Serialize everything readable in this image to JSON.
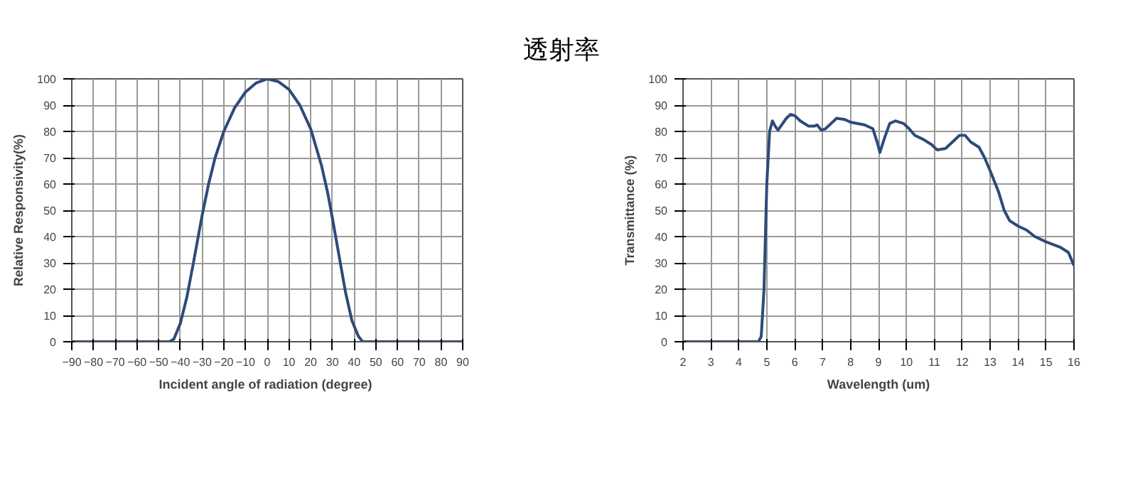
{
  "chart_data": [
    {
      "type": "line",
      "xlabel": "Incident angle of radiation  (degree)",
      "ylabel": "Relative Responsivity(%)",
      "grid": true,
      "marker": "none",
      "line_style": "solid",
      "xlim": [
        -90,
        90
      ],
      "xticks": [
        -90,
        -80,
        -70,
        -60,
        -50,
        -40,
        -30,
        -20,
        -10,
        0,
        10,
        20,
        30,
        40,
        50,
        60,
        70,
        80,
        90
      ],
      "ylim": [
        0,
        100
      ],
      "yticks": [
        0,
        10,
        20,
        30,
        40,
        50,
        60,
        70,
        80,
        90,
        100
      ],
      "series": [
        {
          "color": "#2e4a7a",
          "x": [
            -90,
            -45,
            -43,
            -40,
            -37,
            -34,
            -30,
            -27,
            -24,
            -20,
            -15,
            -10,
            -5,
            0,
            5,
            10,
            15,
            20,
            25,
            28,
            30,
            33,
            36,
            39,
            42,
            44,
            90
          ],
          "values": [
            0,
            0,
            1,
            7,
            17,
            30,
            48,
            60,
            70,
            80,
            89,
            95,
            98.5,
            100,
            99,
            96,
            90,
            81,
            67,
            56,
            47,
            33,
            19,
            8,
            2,
            0,
            0
          ]
        }
      ]
    },
    {
      "type": "line",
      "title": "透射率",
      "xlabel": "Wavelength (um)",
      "ylabel": "Transmittance (%)",
      "grid": true,
      "marker": "none",
      "line_style": "solid",
      "xlim": [
        2,
        16
      ],
      "xticks": [
        2,
        3,
        4,
        5,
        6,
        7,
        8,
        9,
        10,
        11,
        12,
        13,
        14,
        15,
        16
      ],
      "ylim": [
        0,
        100
      ],
      "yticks": [
        0,
        10,
        20,
        30,
        40,
        50,
        60,
        70,
        80,
        90,
        100
      ],
      "series": [
        {
          "color": "#2e4a7a",
          "x": [
            2,
            4.7,
            4.8,
            4.9,
            5.0,
            5.1,
            5.2,
            5.3,
            5.4,
            5.5,
            5.7,
            5.85,
            6.0,
            6.2,
            6.5,
            6.7,
            6.8,
            6.95,
            7.1,
            7.3,
            7.5,
            7.8,
            8.0,
            8.5,
            8.8,
            8.95,
            9.05,
            9.2,
            9.4,
            9.6,
            9.9,
            10.1,
            10.3,
            10.6,
            10.9,
            11.1,
            11.4,
            11.7,
            11.9,
            12.1,
            12.3,
            12.6,
            12.8,
            13.0,
            13.3,
            13.5,
            13.7,
            14.0,
            14.3,
            14.6,
            15.0,
            15.5,
            15.8,
            16.0
          ],
          "values": [
            0,
            0,
            2,
            20,
            60,
            80,
            84,
            82,
            80.5,
            82,
            85,
            86.5,
            86,
            84,
            82,
            82,
            82.5,
            80.5,
            81,
            83,
            85,
            84.5,
            83.5,
            82.5,
            81,
            76,
            72,
            77,
            83,
            84,
            83,
            81,
            78.5,
            77,
            75,
            73,
            73.5,
            76.5,
            78.5,
            78.5,
            76,
            74,
            70,
            65,
            57,
            50,
            46,
            44,
            42.5,
            40,
            38,
            36,
            34,
            29
          ]
        }
      ]
    }
  ]
}
